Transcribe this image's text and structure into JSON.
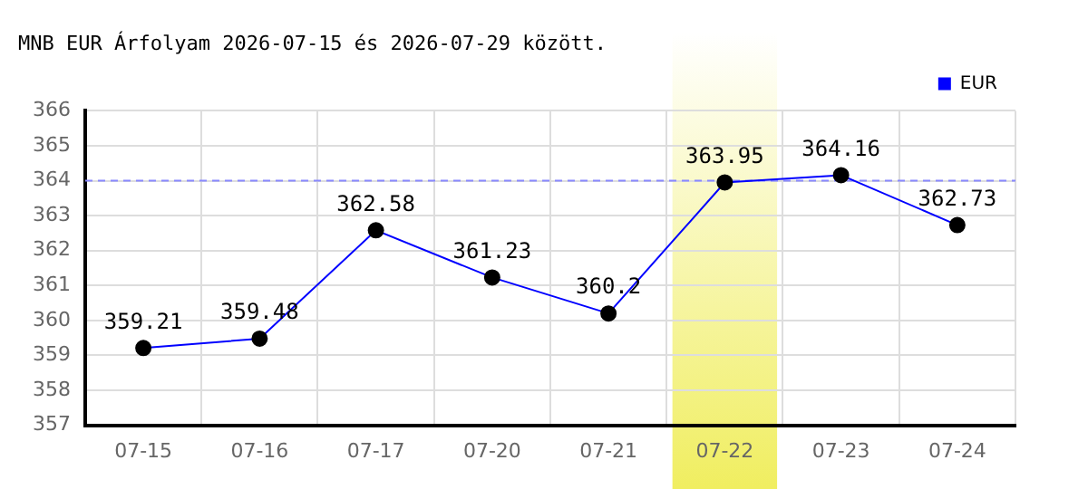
{
  "chart_data": {
    "type": "line",
    "title": "MNB EUR Árfolyam 2026-07-15 és 2026-07-29 között.",
    "categories": [
      "07-15",
      "07-16",
      "07-17",
      "07-20",
      "07-21",
      "07-22",
      "07-23",
      "07-24"
    ],
    "series": [
      {
        "name": "EUR",
        "color": "#0000ff",
        "values": [
          359.21,
          359.48,
          362.58,
          361.23,
          360.2,
          363.95,
          364.16,
          362.73
        ]
      }
    ],
    "ylim": [
      357,
      366
    ],
    "yticks": [
      357,
      358,
      359,
      360,
      361,
      362,
      363,
      364,
      365,
      366
    ],
    "ref_lines": [
      {
        "axis": "y",
        "value": 364,
        "color": "#8888ff",
        "line_style": "dashed"
      }
    ],
    "bands": [
      {
        "axis": "x",
        "from": "07-22",
        "to": "07-22",
        "color": "#f0ee60"
      }
    ],
    "grid": true,
    "legend": "top right",
    "marker": "circle",
    "line_style": "solid",
    "data_labels": true
  }
}
